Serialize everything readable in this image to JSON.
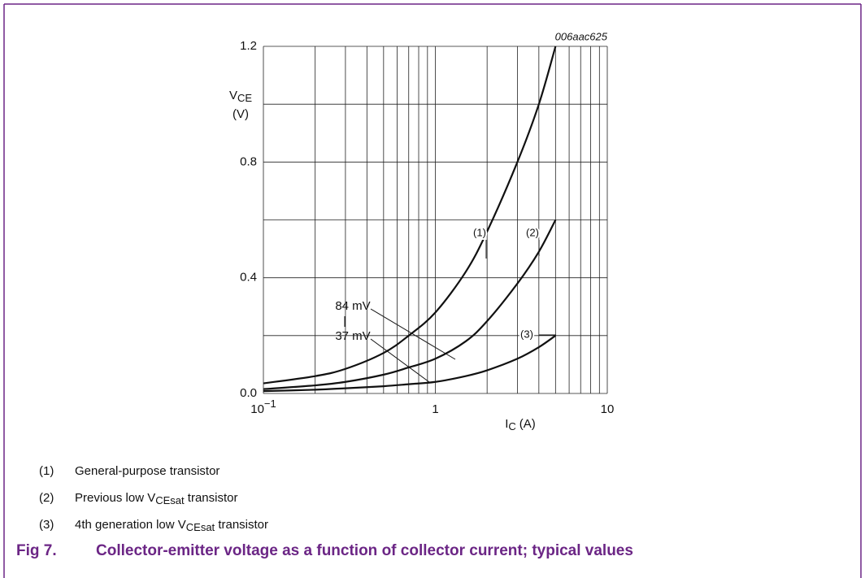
{
  "chart_data": {
    "type": "line",
    "code": "006aac625",
    "y_label": {
      "main": "V",
      "sub": "CE",
      "unit": "(V)"
    },
    "x_label": {
      "main": "I",
      "sub": "C",
      "unit": "(A)"
    },
    "log_x": true,
    "xlim": [
      0.1,
      10
    ],
    "ylim": [
      0,
      1.2
    ],
    "xticks": [
      {
        "value": 0.1,
        "label": "10",
        "exp": "−1"
      },
      1,
      10
    ],
    "xminor": [
      0.2,
      0.3,
      0.4,
      0.5,
      0.6,
      0.7,
      0.8,
      0.9,
      2,
      3,
      4,
      5,
      6,
      7,
      8,
      9
    ],
    "yticks": [
      {
        "value": 0,
        "label": "0.0"
      },
      0.4,
      0.8,
      1.2
    ],
    "yminor": [
      0.2,
      0.6,
      1.0
    ],
    "grid": true,
    "series": [
      {
        "name": "(1)",
        "color": "#111111",
        "x": [
          0.1,
          0.2,
          0.3,
          0.5,
          0.7,
          1,
          1.5,
          2,
          3,
          4,
          5
        ],
        "values": [
          0.035,
          0.06,
          0.085,
          0.14,
          0.2,
          0.28,
          0.42,
          0.56,
          0.8,
          1.0,
          1.2
        ]
      },
      {
        "name": "(2)",
        "color": "#111111",
        "x": [
          0.1,
          0.2,
          0.3,
          0.5,
          0.7,
          1,
          1.5,
          2,
          3,
          4,
          5
        ],
        "values": [
          0.015,
          0.028,
          0.04,
          0.065,
          0.09,
          0.12,
          0.18,
          0.25,
          0.38,
          0.49,
          0.6
        ]
      },
      {
        "name": "(3)",
        "color": "#111111",
        "x": [
          0.1,
          0.2,
          0.3,
          0.5,
          0.7,
          1,
          1.5,
          2,
          3,
          4,
          5
        ],
        "values": [
          0.008,
          0.013,
          0.018,
          0.025,
          0.032,
          0.04,
          0.06,
          0.08,
          0.12,
          0.16,
          0.2
        ]
      }
    ],
    "annotations": [
      "84 mV",
      "37 mV"
    ],
    "legend": [
      {
        "marker": "(1)",
        "text": [
          "General-purpose transistor"
        ]
      },
      {
        "marker": "(2)",
        "text": [
          "Previous low V",
          "CEsat",
          " transistor"
        ]
      },
      {
        "marker": "(3)",
        "text": [
          "4th generation low V",
          "CEsat",
          " transistor"
        ]
      }
    ],
    "caption": {
      "label": "Fig 7.",
      "text": "Collector-emitter voltage as a function of collector current; typical values"
    }
  }
}
